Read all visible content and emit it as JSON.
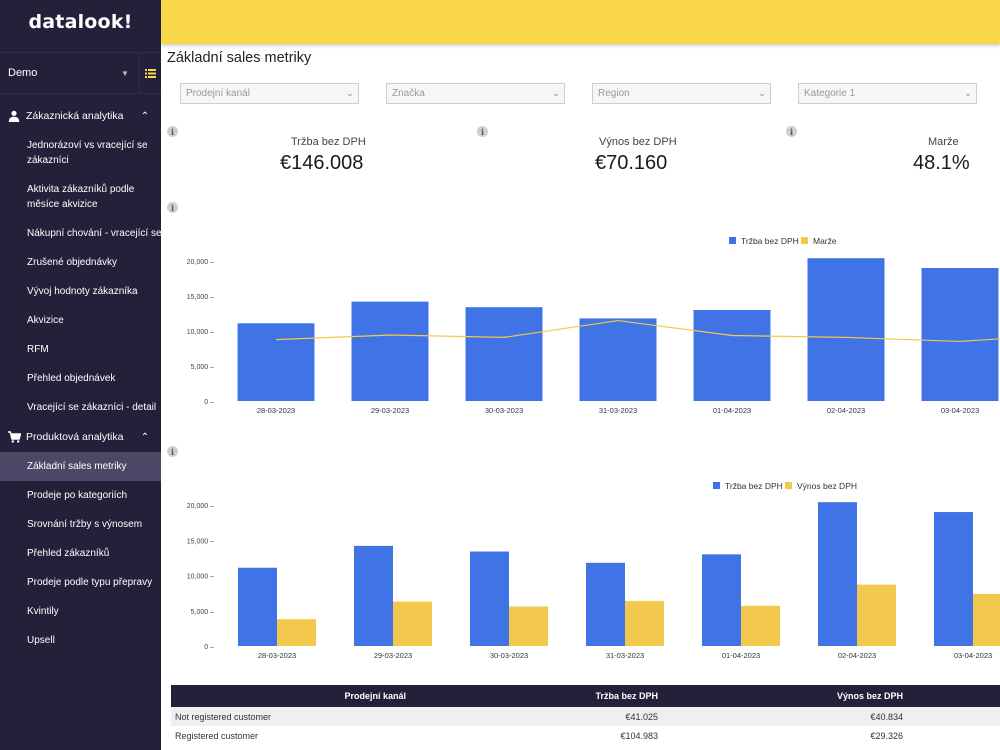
{
  "app": {
    "logo": "datalook!",
    "workspace": "Demo"
  },
  "sidebar": {
    "sections": [
      {
        "label": "Zákaznická analytika",
        "icon": "person-icon",
        "items": [
          "Jednorázoví vs vracející se zákazníci",
          "Aktivita zákazníků podle měsíce akvizice",
          "Nákupní chování - vracející se",
          "Zrušené objednávky",
          "Vývoj hodnoty zákazníka",
          "Akvizice",
          "RFM",
          "Přehled objednávek",
          "Vracející se zákazníci - detail"
        ]
      },
      {
        "label": "Produktová analytika",
        "icon": "cart-icon",
        "items": [
          "Základní sales metriky",
          "Prodeje po kategoriích",
          "Srovnání tržby s výnosem",
          "Přehled zákazníků",
          "Prodeje podle typu přepravy",
          "Kvintily",
          "Upsell"
        ]
      }
    ],
    "active_item": "Základní sales metriky"
  },
  "colors": {
    "sidebar_bg": "#23213a",
    "topbar": "#f8d849",
    "bar_blue": "#3f73e6",
    "bar_yellow": "#f2c94c",
    "line_yellow": "#f2c94c"
  },
  "main": {
    "title": "Základní sales metriky",
    "filters": [
      {
        "placeholder": "Prodejní kanál"
      },
      {
        "placeholder": "Značka"
      },
      {
        "placeholder": "Region"
      },
      {
        "placeholder": "Kategorie 1"
      }
    ],
    "kpis": [
      {
        "label": "Tržba bez DPH",
        "value": "€146.008"
      },
      {
        "label": "Výnos bez DPH",
        "value": "€70.160"
      },
      {
        "label": "Marže",
        "value": "48.1%"
      }
    ],
    "info_glyph": "i"
  },
  "chart_data": [
    {
      "type": "bar",
      "categories": [
        "28-03-2023",
        "29-03-2023",
        "30-03-2023",
        "31-03-2023",
        "01-04-2023",
        "02-04-2023",
        "03-04-2023"
      ],
      "series": [
        {
          "name": "Tržba bez DPH",
          "type": "bar",
          "values": [
            11100,
            14200,
            13400,
            11800,
            13000,
            20400,
            19000
          ]
        },
        {
          "name": "Marže",
          "type": "line",
          "values": [
            0.412,
            0.443,
            0.427,
            0.54,
            0.44,
            0.427,
            0.4
          ]
        }
      ],
      "yticks": [
        "20,000 –",
        "15,000 –",
        "10,000 –",
        "5,000 –",
        "0 –"
      ],
      "ylim": [
        0,
        20000
      ],
      "legend": "top-right"
    },
    {
      "type": "bar",
      "categories": [
        "28-03-2023",
        "29-03-2023",
        "30-03-2023",
        "31-03-2023",
        "01-04-2023",
        "02-04-2023",
        "03-04-2023"
      ],
      "series": [
        {
          "name": "Tržba bez DPH",
          "values": [
            11100,
            14200,
            13400,
            11800,
            13000,
            20400,
            19000
          ]
        },
        {
          "name": "Výnos bez DPH",
          "values": [
            3800,
            6300,
            5600,
            6400,
            5700,
            8700,
            7400
          ]
        }
      ],
      "yticks": [
        "20,000 –",
        "15,000 –",
        "10,000 –",
        "5,000 –",
        "0 –"
      ],
      "ylim": [
        0,
        20000
      ],
      "legend": "top-right"
    }
  ],
  "table": {
    "headers": [
      "Prodejní kanál",
      "Tržba bez DPH",
      "Výnos bez DPH"
    ],
    "rows": [
      [
        "Not registered customer",
        "€41.025",
        "€40.834"
      ],
      [
        "Registered customer",
        "€104.983",
        "€29.326"
      ]
    ]
  }
}
